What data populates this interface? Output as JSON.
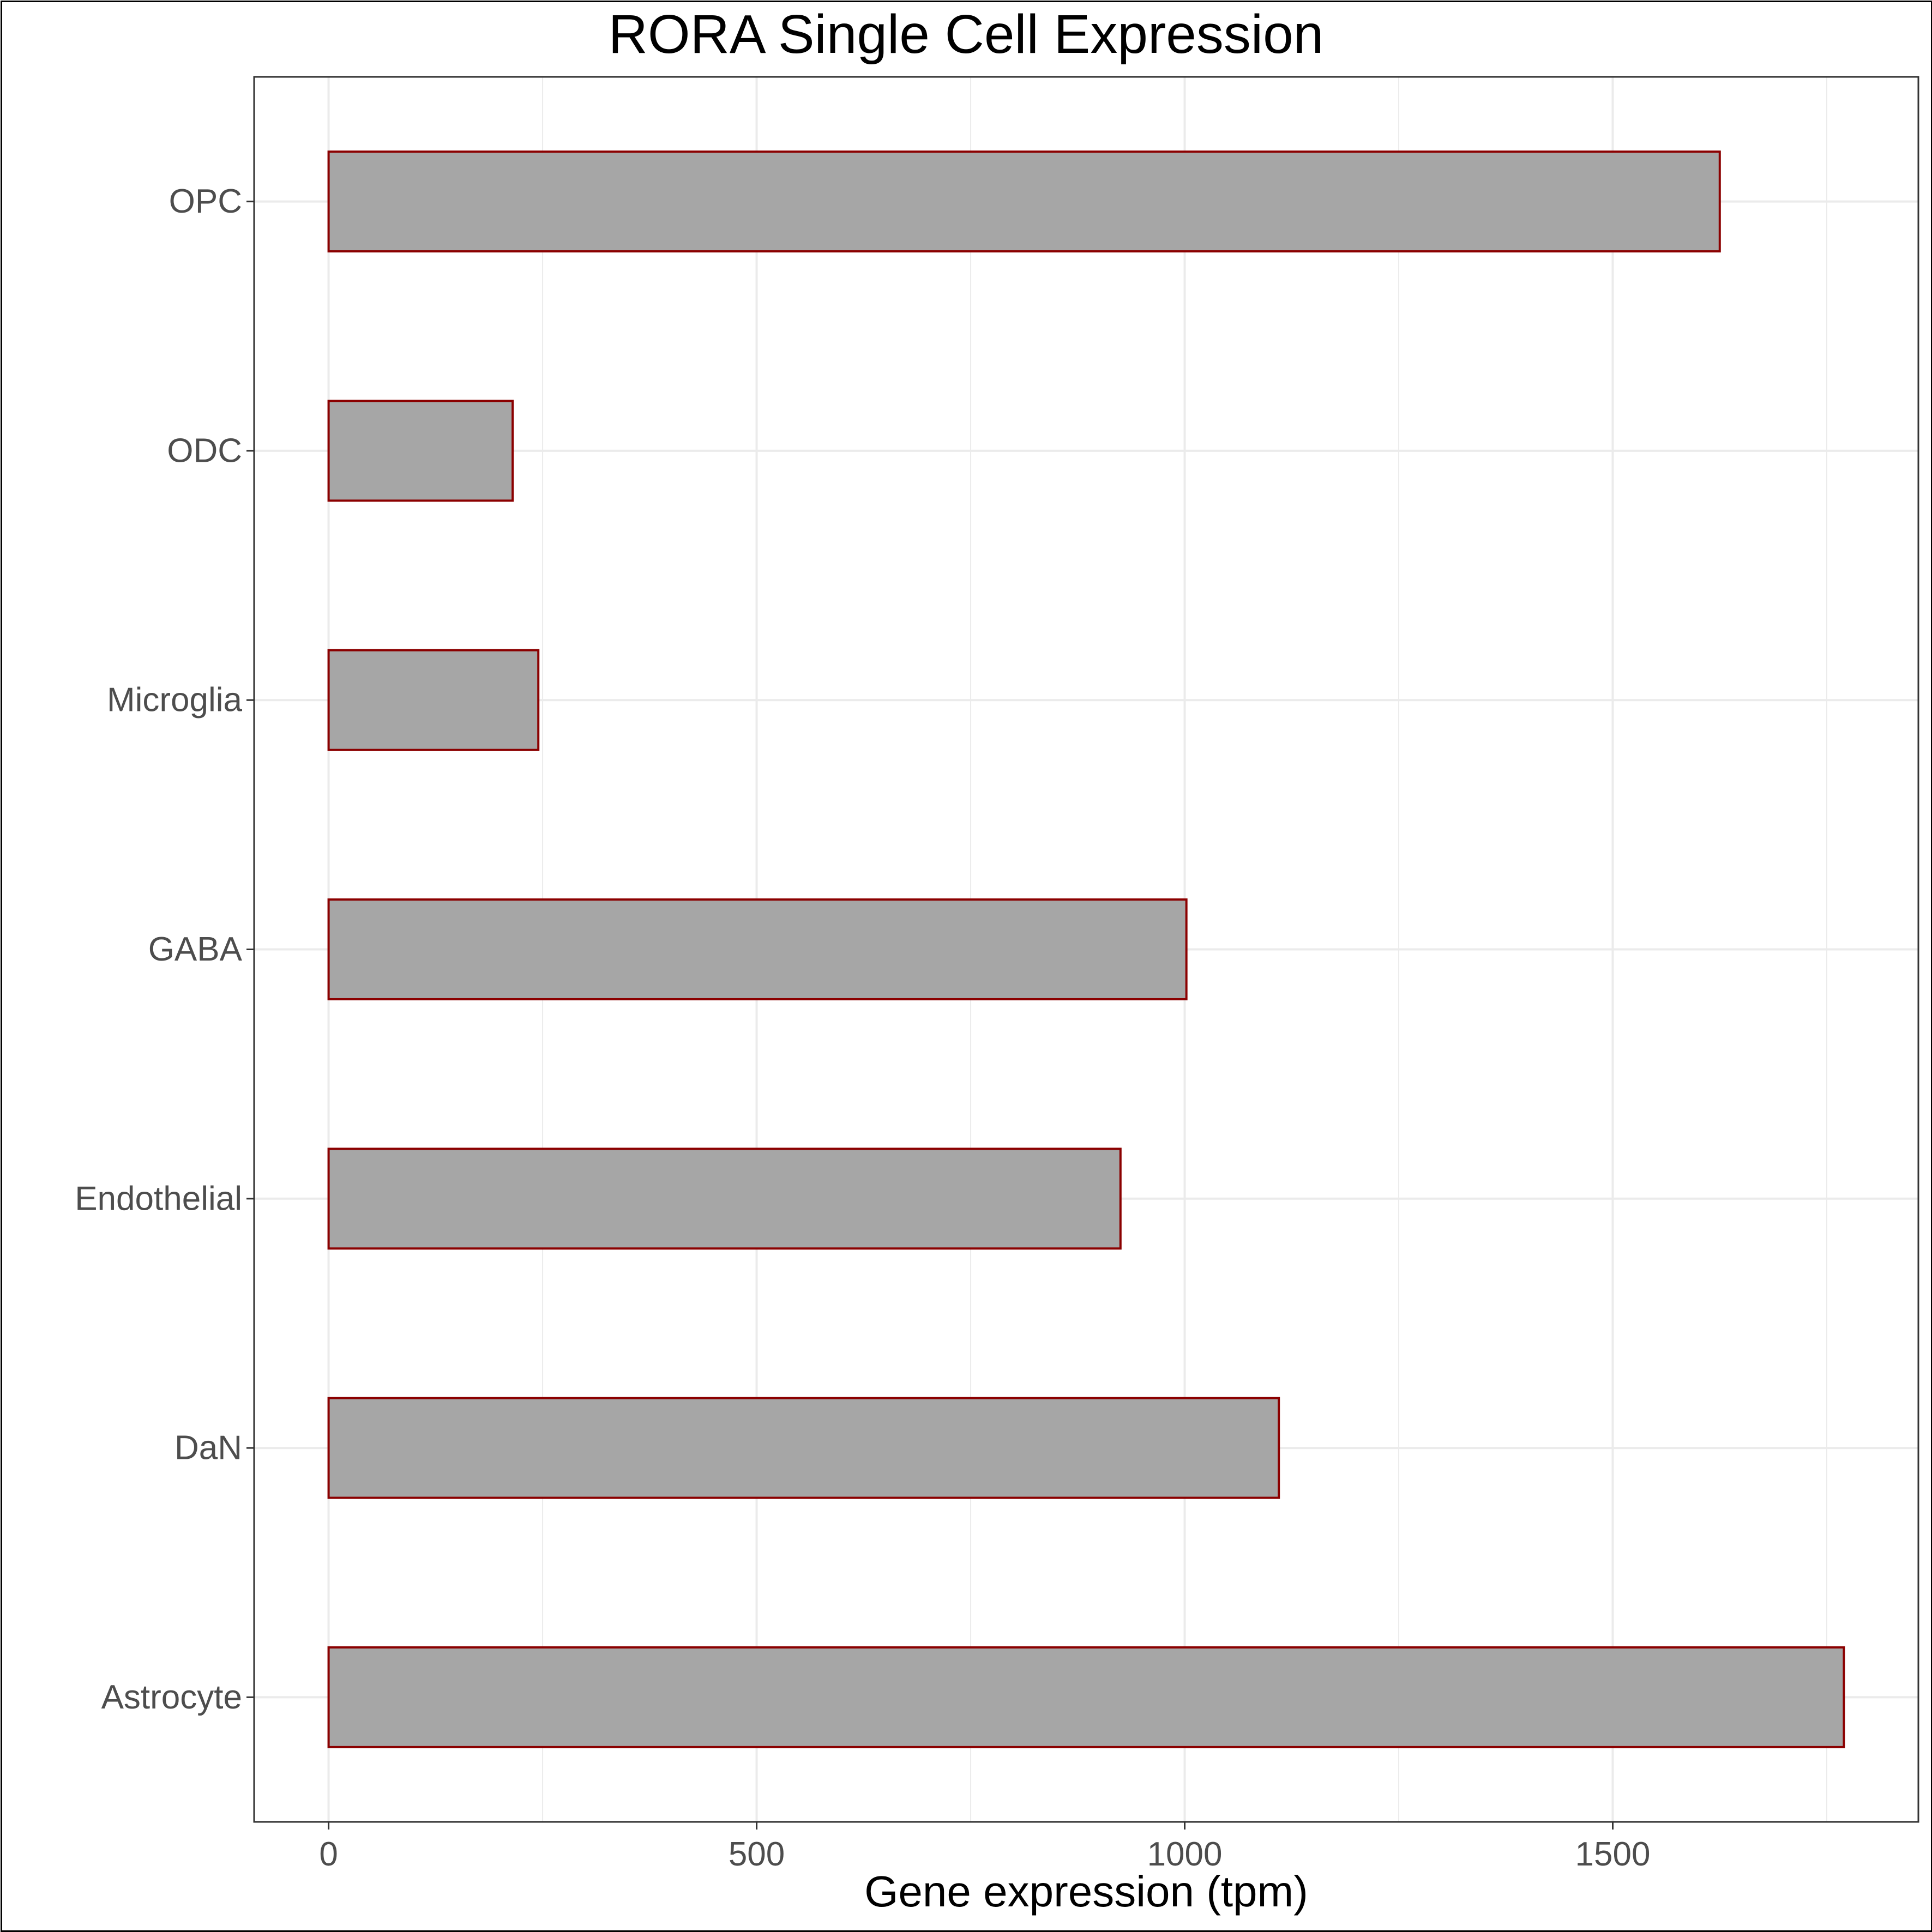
{
  "chart_data": {
    "type": "bar",
    "orientation": "horizontal",
    "title": "RORA Single Cell Expression",
    "xlabel": "Gene expression (tpm)",
    "ylabel": "",
    "categories": [
      "OPC",
      "ODC",
      "Microglia",
      "GABA",
      "Endothelial",
      "DaN",
      "Astrocyte"
    ],
    "values": [
      1625,
      215,
      245,
      1002,
      925,
      1110,
      1770
    ],
    "xlim": [
      -87,
      1857
    ],
    "xticks": [
      0,
      500,
      1000,
      1500
    ],
    "xtick_labels": [
      "0",
      "500",
      "1000",
      "1500"
    ],
    "grid": true,
    "legend": "none",
    "colors": {
      "bar_fill": "#a6a6a6",
      "bar_outline": "#8b0000",
      "grid": "#ebebeb",
      "panel_border": "#333333"
    }
  }
}
